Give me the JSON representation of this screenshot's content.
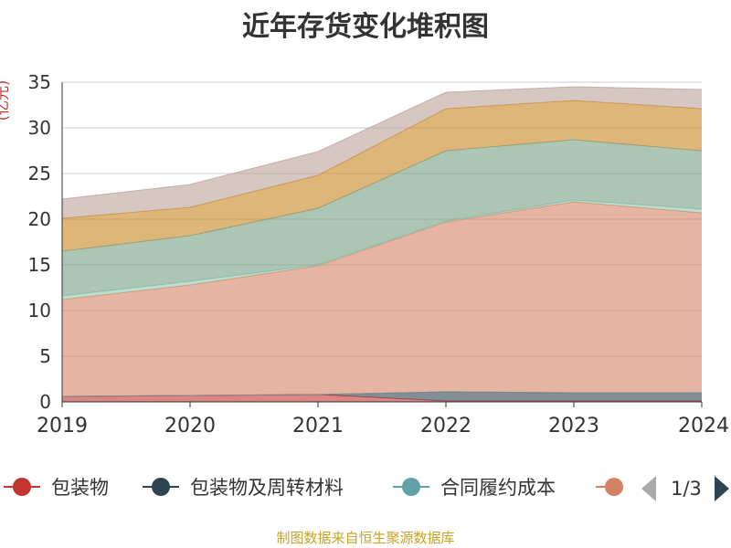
{
  "chart_data": {
    "type": "area",
    "stacked": true,
    "title": "近年存货变化堆积图",
    "ylabel": "(亿元)",
    "ylim": [
      0,
      35
    ],
    "yticks": [
      0,
      5,
      10,
      15,
      20,
      25,
      30,
      35
    ],
    "categories": [
      "2019",
      "2020",
      "2021",
      "2022",
      "2023",
      "2024"
    ],
    "grid": true,
    "series": [
      {
        "name": "包装物",
        "color": "#c23531",
        "values": [
          0.6,
          0.7,
          0.8,
          0.1,
          0.1,
          0.1
        ]
      },
      {
        "name": "包装物及周转材料",
        "color": "#2f4554",
        "values": [
          0.0,
          0.0,
          0.0,
          1.0,
          0.9,
          0.9
        ]
      },
      {
        "name": "合同履约成本",
        "color": "#61a0a8",
        "values": [
          0.0,
          0.0,
          0.0,
          0.0,
          0.0,
          0.0
        ]
      },
      {
        "name": "",
        "color": "#d48265",
        "values": [
          10.6,
          12.1,
          14.1,
          18.6,
          20.9,
          19.7
        ]
      },
      {
        "name": "",
        "color": "#91c7ae",
        "values": [
          0.4,
          0.4,
          0.1,
          0.1,
          0.2,
          0.4
        ]
      },
      {
        "name": "",
        "color": "#749f83",
        "values": [
          4.9,
          5.0,
          6.2,
          7.7,
          6.6,
          6.4
        ]
      },
      {
        "name": "",
        "color": "#ca8622",
        "values": [
          3.6,
          3.1,
          3.6,
          4.6,
          4.3,
          4.6
        ]
      },
      {
        "name": "",
        "color": "#bda29a",
        "values": [
          2.1,
          2.5,
          2.6,
          1.8,
          1.5,
          2.1
        ]
      }
    ],
    "legend": {
      "position": "bottom",
      "visible_items": [
        "包装物",
        "包装物及周转材料",
        "合同履约成本"
      ],
      "page": "1/3"
    }
  },
  "source": "制图数据来自恒生聚源数据库"
}
